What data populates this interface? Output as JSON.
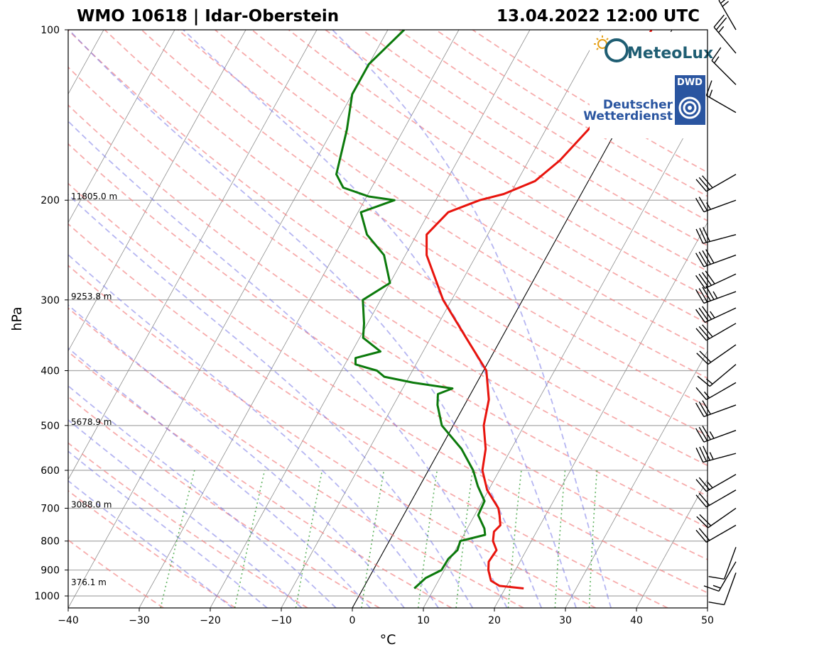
{
  "header": {
    "station": "WMO 10618 | Idar-Oberstein",
    "datetime": "13.04.2022 12:00 UTC"
  },
  "logos": {
    "meteolux": "MeteoLux",
    "dwd_badge": "DWD",
    "dwd_line1": "Deutscher",
    "dwd_line2": "Wetterdienst"
  },
  "chart_data": {
    "type": "line",
    "subtype": "skew-T log-P diagram",
    "xlabel": "°C",
    "ylabel": "hPa",
    "xlim": [
      -40,
      50
    ],
    "ylim": [
      1050,
      100
    ],
    "y_scale": "log",
    "x_ticks": [
      -40,
      -30,
      -20,
      -10,
      0,
      10,
      20,
      30,
      40,
      50
    ],
    "x_tick_labels": [
      "−40",
      "−30",
      "−20",
      "−10",
      "0",
      "10",
      "20",
      "30",
      "40",
      "50"
    ],
    "y_ticks": [
      100,
      200,
      300,
      400,
      500,
      600,
      700,
      800,
      900,
      1000
    ],
    "y_tick_labels": [
      "100",
      "200",
      "300",
      "400",
      "500",
      "600",
      "700",
      "800",
      "900",
      "1000"
    ],
    "grid": true,
    "height_labels": [
      {
        "p": 200,
        "text": "11805.0 m"
      },
      {
        "p": 300,
        "text": "9253.8 m"
      },
      {
        "p": 500,
        "text": "5678.9 m"
      },
      {
        "p": 700,
        "text": "3088.0 m"
      },
      {
        "p": 960,
        "text": "376.1 m"
      }
    ],
    "series": [
      {
        "color": "#e8140d",
        "points": [
          [
            970,
            22.6
          ],
          [
            960,
            19.0
          ],
          [
            940,
            17.4
          ],
          [
            900,
            16.2
          ],
          [
            870,
            15.6
          ],
          [
            830,
            15.8
          ],
          [
            800,
            14.6
          ],
          [
            770,
            14.0
          ],
          [
            750,
            14.4
          ],
          [
            720,
            13.5
          ],
          [
            700,
            12.8
          ],
          [
            650,
            9.8
          ],
          [
            600,
            7.6
          ],
          [
            550,
            6.4
          ],
          [
            500,
            4.3
          ],
          [
            450,
            3.0
          ],
          [
            400,
            0.4
          ],
          [
            350,
            -5.0
          ],
          [
            300,
            -11.2
          ],
          [
            250,
            -17.0
          ],
          [
            230,
            -18.6
          ],
          [
            210,
            -17.3
          ],
          [
            200,
            -13.8
          ],
          [
            195,
            -10.9
          ],
          [
            185,
            -7.5
          ],
          [
            170,
            -5.6
          ],
          [
            150,
            -4.0
          ],
          [
            130,
            -2.8
          ],
          [
            115,
            -2.5
          ],
          [
            100,
            -2.9
          ]
        ]
      },
      {
        "color": "#0c7a0c",
        "points": [
          [
            970,
            7.2
          ],
          [
            930,
            8.0
          ],
          [
            900,
            9.6
          ],
          [
            860,
            9.7
          ],
          [
            830,
            10.3
          ],
          [
            800,
            10.0
          ],
          [
            780,
            13.0
          ],
          [
            760,
            12.4
          ],
          [
            720,
            10.5
          ],
          [
            680,
            10.3
          ],
          [
            640,
            8.2
          ],
          [
            600,
            6.3
          ],
          [
            550,
            3.0
          ],
          [
            500,
            -1.6
          ],
          [
            460,
            -3.8
          ],
          [
            440,
            -4.6
          ],
          [
            430,
            -3.0
          ],
          [
            420,
            -9.0
          ],
          [
            410,
            -13.5
          ],
          [
            400,
            -15.0
          ],
          [
            390,
            -18.5
          ],
          [
            380,
            -19.0
          ],
          [
            370,
            -16.0
          ],
          [
            350,
            -19.5
          ],
          [
            330,
            -20.5
          ],
          [
            300,
            -22.5
          ],
          [
            280,
            -20.0
          ],
          [
            250,
            -23.0
          ],
          [
            230,
            -27.0
          ],
          [
            210,
            -29.6
          ],
          [
            200,
            -25.8
          ],
          [
            197,
            -29.7
          ],
          [
            190,
            -34.0
          ],
          [
            180,
            -36.0
          ],
          [
            150,
            -38.0
          ],
          [
            130,
            -40.0
          ],
          [
            115,
            -40.0
          ],
          [
            100,
            -37.7
          ]
        ]
      }
    ],
    "wind_barbs": [
      {
        "p": 100,
        "dir": 330,
        "speed": 25
      },
      {
        "p": 110,
        "dir": 320,
        "speed": 25
      },
      {
        "p": 125,
        "dir": 315,
        "speed": 15
      },
      {
        "p": 140,
        "dir": 300,
        "speed": 15
      },
      {
        "p": 180,
        "dir": 240,
        "speed": 30
      },
      {
        "p": 200,
        "dir": 250,
        "speed": 25
      },
      {
        "p": 230,
        "dir": 255,
        "speed": 30
      },
      {
        "p": 250,
        "dir": 250,
        "speed": 40
      },
      {
        "p": 270,
        "dir": 245,
        "speed": 40
      },
      {
        "p": 290,
        "dir": 250,
        "speed": 45
      },
      {
        "p": 310,
        "dir": 245,
        "speed": 35
      },
      {
        "p": 330,
        "dir": 240,
        "speed": 30
      },
      {
        "p": 360,
        "dir": 235,
        "speed": 20
      },
      {
        "p": 390,
        "dir": 230,
        "speed": 15
      },
      {
        "p": 420,
        "dir": 240,
        "speed": 15
      },
      {
        "p": 460,
        "dir": 250,
        "speed": 30
      },
      {
        "p": 510,
        "dir": 250,
        "speed": 35
      },
      {
        "p": 560,
        "dir": 255,
        "speed": 35
      },
      {
        "p": 610,
        "dir": 240,
        "speed": 25
      },
      {
        "p": 650,
        "dir": 240,
        "speed": 20
      },
      {
        "p": 700,
        "dir": 235,
        "speed": 20
      },
      {
        "p": 750,
        "dir": 240,
        "speed": 20
      },
      {
        "p": 820,
        "dir": 200,
        "speed": 10
      },
      {
        "p": 870,
        "dir": 210,
        "speed": 15
      },
      {
        "p": 910,
        "dir": 200,
        "speed": 10
      }
    ]
  }
}
